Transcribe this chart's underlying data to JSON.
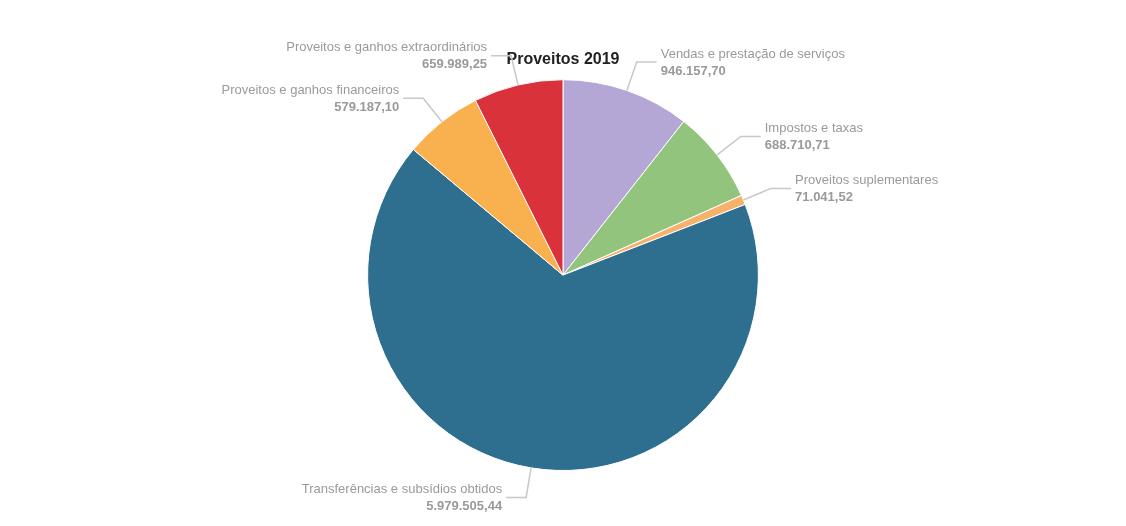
{
  "chart_data": {
    "type": "pie",
    "title": "Proveitos 2019",
    "categories": [
      "Vendas e prestação de serviços",
      "Impostos e taxas",
      "Proveitos suplementares",
      "Transferências e subsídios obtidos",
      "Proveitos e ganhos financeiros",
      "Proveitos e ganhos extraordinários"
    ],
    "values": [
      946157.7,
      688710.71,
      71041.52,
      5979505.44,
      579187.1,
      659989.25
    ],
    "value_labels": [
      "946.157,70",
      "688.710,71",
      "71.041,52",
      "5.979.505,44",
      "579.187,10",
      "659.989,25"
    ],
    "colors": [
      "#b4a7d6",
      "#93c47d",
      "#f6b26b",
      "#2e6e8e",
      "#f9b04f",
      "#d9323a"
    ],
    "legend": false
  }
}
